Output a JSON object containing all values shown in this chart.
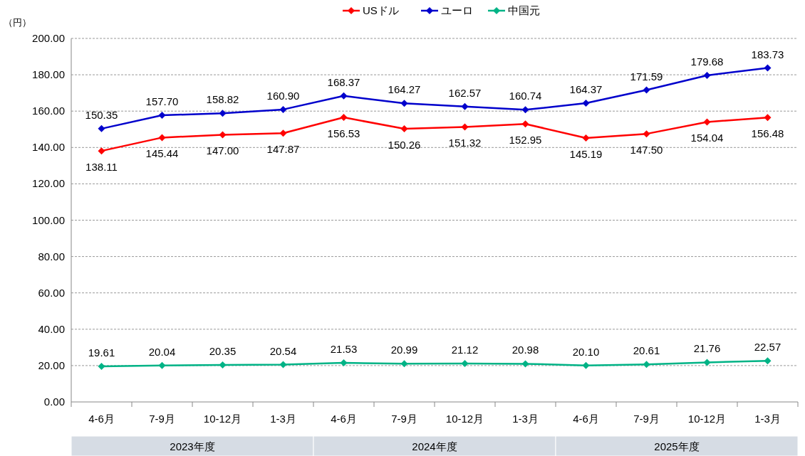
{
  "chart_data": {
    "type": "line",
    "ylabel": "（円）",
    "categories": [
      "4-6月",
      "7-9月",
      "10-12月",
      "1-3月",
      "4-6月",
      "7-9月",
      "10-12月",
      "1-3月",
      "4-6月",
      "7-9月",
      "10-12月",
      "1-3月"
    ],
    "series": [
      {
        "name": "USドル",
        "color": "#ff0000",
        "values": [
          138.11,
          145.44,
          147.0,
          147.87,
          156.53,
          150.26,
          151.32,
          152.95,
          145.19,
          147.5,
          154.04,
          156.48
        ],
        "value_labels": [
          "138.11",
          "145.44",
          "147.00",
          "147.87",
          "156.53",
          "150.26",
          "151.32",
          "152.95",
          "145.19",
          "147.50",
          "154.04",
          "156.48"
        ]
      },
      {
        "name": "ユーロ",
        "color": "#0000cc",
        "values": [
          150.35,
          157.7,
          158.82,
          160.9,
          168.37,
          164.27,
          162.57,
          160.74,
          164.37,
          171.59,
          179.68,
          183.73
        ],
        "value_labels": [
          "150.35",
          "157.70",
          "158.82",
          "160.90",
          "168.37",
          "164.27",
          "162.57",
          "160.74",
          "164.37",
          "171.59",
          "179.68",
          "183.73"
        ]
      },
      {
        "name": "中国元",
        "color": "#00b386",
        "values": [
          19.61,
          20.04,
          20.35,
          20.54,
          21.53,
          20.99,
          21.12,
          20.98,
          20.1,
          20.61,
          21.76,
          22.57
        ],
        "value_labels": [
          "19.61",
          "20.04",
          "20.35",
          "20.54",
          "21.53",
          "20.99",
          "21.12",
          "20.98",
          "20.10",
          "20.61",
          "21.76",
          "22.57"
        ]
      }
    ],
    "ylim": [
      0,
      200
    ],
    "yticks": [
      {
        "value": 0,
        "label": "0.00"
      },
      {
        "value": 20,
        "label": "20.00"
      },
      {
        "value": 40,
        "label": "40.00"
      },
      {
        "value": 60,
        "label": "60.00"
      },
      {
        "value": 80,
        "label": "80.00"
      },
      {
        "value": 100,
        "label": "100.00"
      },
      {
        "value": 120,
        "label": "120.00"
      },
      {
        "value": 140,
        "label": "140.00"
      },
      {
        "value": 160,
        "label": "160.00"
      },
      {
        "value": 180,
        "label": "180.00"
      },
      {
        "value": 200,
        "label": "200.00"
      }
    ],
    "annotations": [
      "2023年度",
      "2024年度",
      "2025年度"
    ],
    "grid": "y",
    "legend": "top",
    "marker": "diamond",
    "line_style": "solid"
  }
}
